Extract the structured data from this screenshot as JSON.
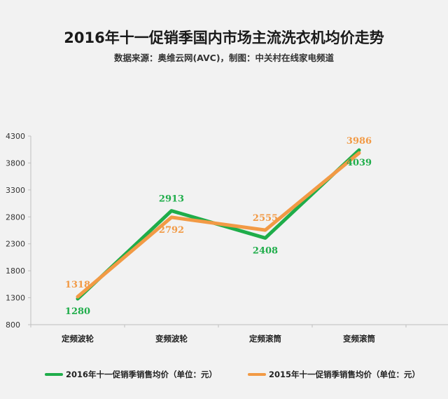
{
  "title": "2016年十一促销季国内市场主流洗衣机均价走势",
  "subtitle": "数据来源：奥维云网(AVC)，制图：中关村在线家电频道",
  "colors": {
    "series_2016": "#1fad4a",
    "series_2015": "#f29a45",
    "axis": "#bfbfbf",
    "background": "#f2f2f2"
  },
  "chart_data": {
    "type": "line",
    "categories": [
      "定频波轮",
      "变频波轮",
      "定频滚筒",
      "变频滚筒"
    ],
    "y_ticks": [
      "800",
      "1300",
      "1800",
      "2300",
      "2800",
      "3300",
      "3800",
      "4300"
    ],
    "ylim": [
      800,
      4300
    ],
    "grid": false,
    "legend_position": "bottom",
    "series": [
      {
        "name": "2016年十一促销季销售均价（单位：元）",
        "values": [
          1280,
          2913,
          2408,
          4039
        ],
        "labels": [
          "1280",
          "2913",
          "2408",
          "4039"
        ]
      },
      {
        "name": "2015年十一促销季销售均价（单位：元）",
        "values": [
          1318,
          2792,
          2555,
          3986
        ],
        "labels": [
          "1318",
          "2792",
          "2555",
          "3986"
        ]
      }
    ]
  }
}
